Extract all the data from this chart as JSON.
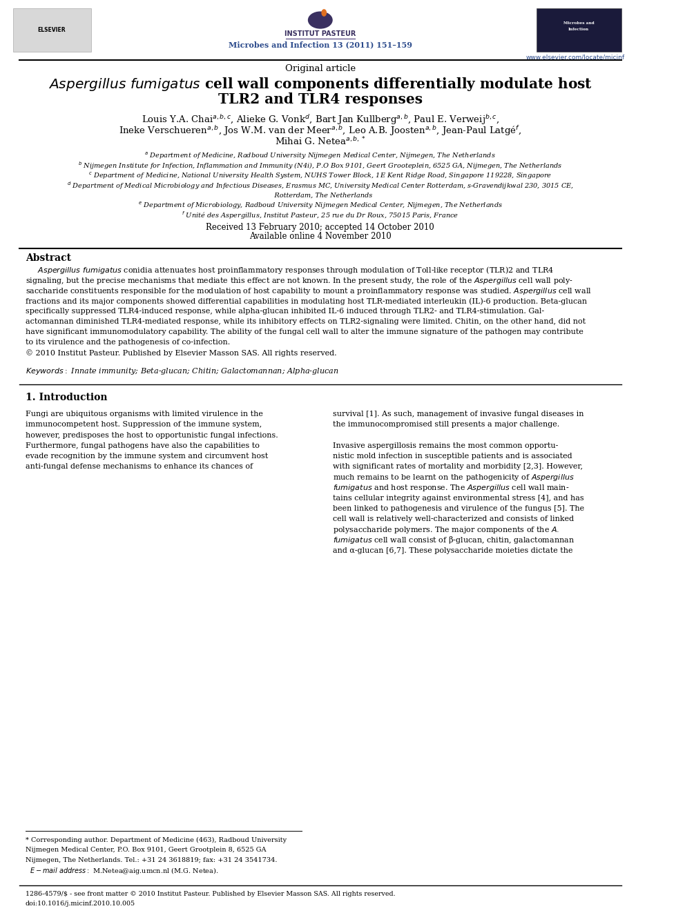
{
  "background_color": "#ffffff",
  "page_width": 9.92,
  "page_height": 13.23,
  "journal_name": "Microbes and Infection 13 (2011) 151–159",
  "journal_url": "www.elsevier.com/locate/micinf",
  "institut_pasteur_text": "INSTITUT PASTEUR",
  "elsevier_text": "ELSEVIER",
  "article_type": "Original article",
  "title_line1": "$\\it{Aspergillus\\ fumigatus}$ cell wall components differentially modulate host",
  "title_line2": "TLR2 and TLR4 responses",
  "author_line1": "Louis Y.A. Chai$^{a,b,c}$, Alieke G. Vonk$^{d}$, Bart Jan Kullberg$^{a,b}$, Paul E. Verweij$^{b,c}$,",
  "author_line2": "Ineke Verschueren$^{a,b}$, Jos W.M. van der Meer$^{a,b}$, Leo A.B. Joosten$^{a,b}$, Jean-Paul Latgé$^{f}$,",
  "author_line3": "Mihai G. Netea$^{a,b,*}$",
  "affil_a": "$^{a}$ Department of Medicine, Radboud University Nijmegen Medical Center, Nijmegen, The Netherlands",
  "affil_b": "$^{b}$ Nijmegen Institute for Infection, Inflammation and Immunity (N4i), P.O Box 9101, Geert Grooteplein, 6525 GA, Nijmegen, The Netherlands",
  "affil_c": "$^{c}$ Department of Medicine, National University Health System, NUHS Tower Block, 1E Kent Ridge Road, Singapore 119228, Singapore",
  "affil_d1": "$^{d}$ Department of Medical Microbiology and Infectious Diseases, Erasmus MC, University Medical Center Rotterdam, s-Gravendijkwal 230, 3015 CE,",
  "affil_d2": "   Rotterdam, The Netherlands",
  "affil_e": "$^{e}$ Department of Microbiology, Radboud University Nijmegen Medical Center, Nijmegen, The Netherlands",
  "affil_f": "$^{f}$ Unité des Aspergillus, Institut Pasteur, 25 rue du Dr Roux, 75015 Paris, France",
  "received": "Received 13 February 2010; accepted 14 October 2010",
  "available": "Available online 4 November 2010",
  "abstract_title": "Abstract",
  "abstract_lines": [
    "     $\\it{Aspergillus\\ fumigatus}$ conidia attenuates host proinflammatory responses through modulation of Toll-like receptor (TLR)2 and TLR4",
    "signaling, but the precise mechanisms that mediate this effect are not known. In the present study, the role of the $\\it{Aspergillus}$ cell wall poly-",
    "saccharide constituents responsible for the modulation of host capability to mount a proinflammatory response was studied. $\\it{Aspergillus}$ cell wall",
    "fractions and its major components showed differential capabilities in modulating host TLR-mediated interleukin (IL)-6 production. Beta-glucan",
    "specifically suppressed TLR4-induced response, while alpha-glucan inhibited IL-6 induced through TLR2- and TLR4-stimulation. Gal-",
    "actomannan diminished TLR4-mediated response, while its inhibitory effects on TLR2-signaling were limited. Chitin, on the other hand, did not",
    "have significant immunomodulatory capability. The ability of the fungal cell wall to alter the immune signature of the pathogen may contribute",
    "to its virulence and the pathogenesis of co-infection.",
    "© 2010 Institut Pasteur. Published by Elsevier Masson SAS. All rights reserved."
  ],
  "keywords": "$\\it{Keywords:}$ Innate immunity; Beta-glucan; Chitin; Galactomannan; Alpha-glucan",
  "intro_title": "1. Introduction",
  "col1_lines": [
    "Fungi are ubiquitous organisms with limited virulence in the",
    "immunocompetent host. Suppression of the immune system,",
    "however, predisposes the host to opportunistic fungal infections.",
    "Furthermore, fungal pathogens have also the capabilities to",
    "evade recognition by the immune system and circumvent host",
    "anti-fungal defense mechanisms to enhance its chances of"
  ],
  "col2_lines": [
    "survival [1]. As such, management of invasive fungal diseases in",
    "the immunocompromised still presents a major challenge.",
    "",
    "Invasive aspergillosis remains the most common opportu-",
    "nistic mold infection in susceptible patients and is associated",
    "with significant rates of mortality and morbidity [2,3]. However,",
    "much remains to be learnt on the pathogenicity of $\\it{Aspergillus}$",
    "$\\it{fumigatus}$ and host response. The $\\it{Aspergillus}$ cell wall main-",
    "tains cellular integrity against environmental stress [4], and has",
    "been linked to pathogenesis and virulence of the fungus [5]. The",
    "cell wall is relatively well-characterized and consists of linked",
    "polysaccharide polymers. The major components of the $\\it{A.}$",
    "$\\it{fumigatus}$ cell wall consist of β-glucan, chitin, galactomannan",
    "and α-glucan [6,7]. These polysaccharide moieties dictate the"
  ],
  "footnote_lines": [
    "* Corresponding author. Department of Medicine (463), Radboud University",
    "Nijmegen Medical Center, P.O. Box 9101, Geert Grootplein 8, 6525 GA",
    "Nijmegen, The Netherlands. Tel.: +31 24 3618819; fax: +31 24 3541734.",
    "  $\\it{E-mail\\ address:}$ M.Netea@aig.umcn.nl (M.G. Netea)."
  ],
  "issn_line": "1286-4579/$ - see front matter © 2010 Institut Pasteur. Published by Elsevier Masson SAS. All rights reserved.",
  "doi_line": "doi:10.1016/j.micinf.2010.10.005",
  "journal_color": "#2b4a8b",
  "url_color": "#2b4a8b",
  "pasteur_purple": "#3a3060",
  "pasteur_line_color": "#4a3a7a",
  "pasteur_orange": "#e07020"
}
